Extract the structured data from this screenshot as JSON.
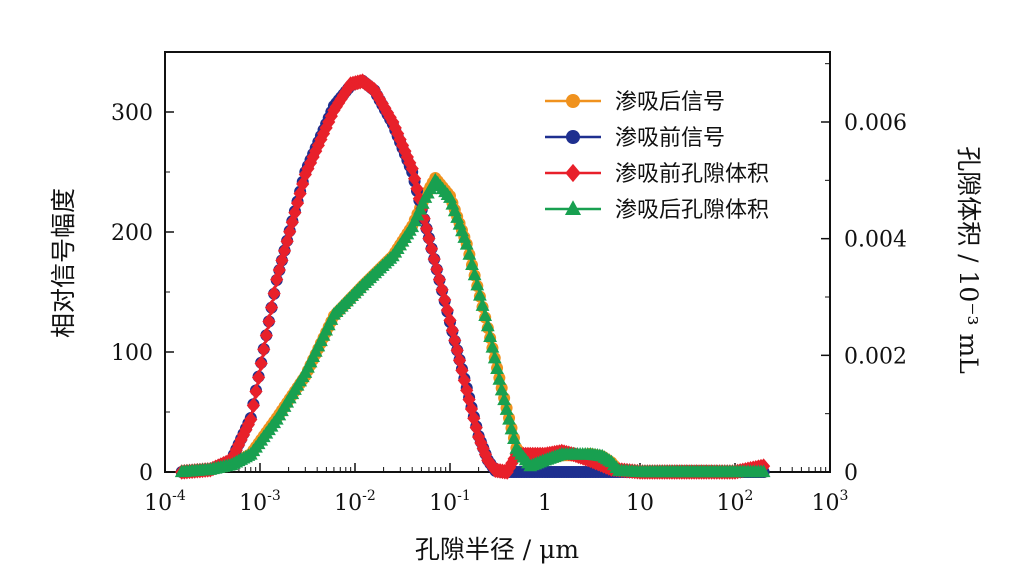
{
  "chart_data": {
    "type": "line",
    "xlabel": "孔隙半径 / μm",
    "ylabel_left": "相对信号幅度",
    "ylabel_right": "孔隙体积 / 10⁻³ mL",
    "x_scale": "log",
    "xlim": [
      0.0001,
      1000
    ],
    "ylim_left": [
      0,
      350
    ],
    "ylim_right": [
      0,
      0.0072
    ],
    "grid": false,
    "legend_position": "top-right",
    "x_tick_labels": [
      {
        "base": "10",
        "exp": "-4"
      },
      {
        "base": "10",
        "exp": "-3"
      },
      {
        "base": "10",
        "exp": "-2"
      },
      {
        "base": "10",
        "exp": "-1"
      },
      {
        "base": "1",
        "exp": ""
      },
      {
        "base": "10",
        "exp": ""
      },
      {
        "base": "10",
        "exp": "2"
      },
      {
        "base": "10",
        "exp": "3"
      }
    ],
    "y_left_ticks": [
      "0",
      "100",
      "200",
      "300"
    ],
    "y_right_ticks": [
      "0",
      "0.002",
      "0.004",
      "0.006"
    ],
    "series": [
      {
        "name": "渗吸后信号",
        "axis": "left",
        "color": "#f0921e",
        "marker": "circle",
        "x": [
          0.00015,
          0.0003,
          0.0005,
          0.0008,
          0.0015,
          0.003,
          0.006,
          0.012,
          0.025,
          0.04,
          0.055,
          0.07,
          0.1,
          0.15,
          0.25,
          0.35,
          0.5,
          0.7,
          1,
          1.5,
          2.2,
          3,
          4,
          5,
          6,
          10,
          30,
          100,
          200
        ],
        "y": [
          0,
          2,
          6,
          15,
          45,
          80,
          130,
          155,
          180,
          205,
          230,
          245,
          230,
          190,
          120,
          70,
          20,
          5,
          10,
          14,
          14,
          15,
          13,
          8,
          1,
          0,
          0,
          0,
          0
        ]
      },
      {
        "name": "渗吸前信号",
        "axis": "left",
        "color": "#1e2f8f",
        "marker": "circle",
        "x": [
          0.00015,
          0.0003,
          0.0005,
          0.0008,
          0.0015,
          0.003,
          0.006,
          0.009,
          0.012,
          0.016,
          0.025,
          0.04,
          0.06,
          0.1,
          0.15,
          0.2,
          0.25,
          0.3,
          0.35,
          0.5,
          1,
          1.5,
          2,
          3,
          5,
          10,
          50,
          100,
          200
        ],
        "y": [
          0,
          2,
          10,
          45,
          160,
          250,
          305,
          322,
          326,
          318,
          290,
          250,
          195,
          125,
          70,
          30,
          10,
          1,
          0,
          0,
          0,
          0,
          0,
          0,
          0,
          0,
          0,
          0,
          0
        ]
      },
      {
        "name": "渗吸前孔隙体积",
        "axis": "right",
        "color": "#e8202a",
        "marker": "diamond",
        "x": [
          0.00015,
          0.0003,
          0.0005,
          0.0008,
          0.0015,
          0.003,
          0.006,
          0.009,
          0.012,
          0.016,
          0.025,
          0.04,
          0.06,
          0.1,
          0.15,
          0.2,
          0.25,
          0.3,
          0.4,
          0.5,
          0.7,
          1,
          1.5,
          2,
          3,
          5,
          10,
          50,
          100,
          200
        ],
        "y": [
          0,
          4e-05,
          0.0002,
          0.0009,
          0.0033,
          0.0051,
          0.0062,
          0.00665,
          0.0067,
          0.00655,
          0.006,
          0.0052,
          0.004,
          0.0026,
          0.0014,
          0.0006,
          0.0002,
          3e-05,
          0,
          0.0003,
          0.0003,
          0.0003,
          0.00035,
          0.0003,
          0.0002,
          5e-05,
          0,
          0,
          0,
          0.0001
        ]
      },
      {
        "name": "渗吸后孔隙体积",
        "axis": "right",
        "color": "#18a050",
        "marker": "triangle",
        "x": [
          0.00015,
          0.0003,
          0.0005,
          0.0008,
          0.0015,
          0.003,
          0.006,
          0.012,
          0.025,
          0.04,
          0.055,
          0.07,
          0.1,
          0.15,
          0.25,
          0.35,
          0.5,
          0.7,
          1,
          1.5,
          2.2,
          3,
          4,
          5,
          6,
          10,
          30,
          100,
          200
        ],
        "y": [
          0,
          4e-05,
          0.00012,
          0.0003,
          0.0009,
          0.0017,
          0.0027,
          0.0032,
          0.0037,
          0.0042,
          0.0047,
          0.005,
          0.0047,
          0.0039,
          0.0025,
          0.0014,
          0.0004,
          0.0001,
          0.0002,
          0.0003,
          0.0003,
          0.0003,
          0.00027,
          0.00017,
          2e-05,
          0,
          0,
          0,
          0
        ]
      }
    ]
  }
}
